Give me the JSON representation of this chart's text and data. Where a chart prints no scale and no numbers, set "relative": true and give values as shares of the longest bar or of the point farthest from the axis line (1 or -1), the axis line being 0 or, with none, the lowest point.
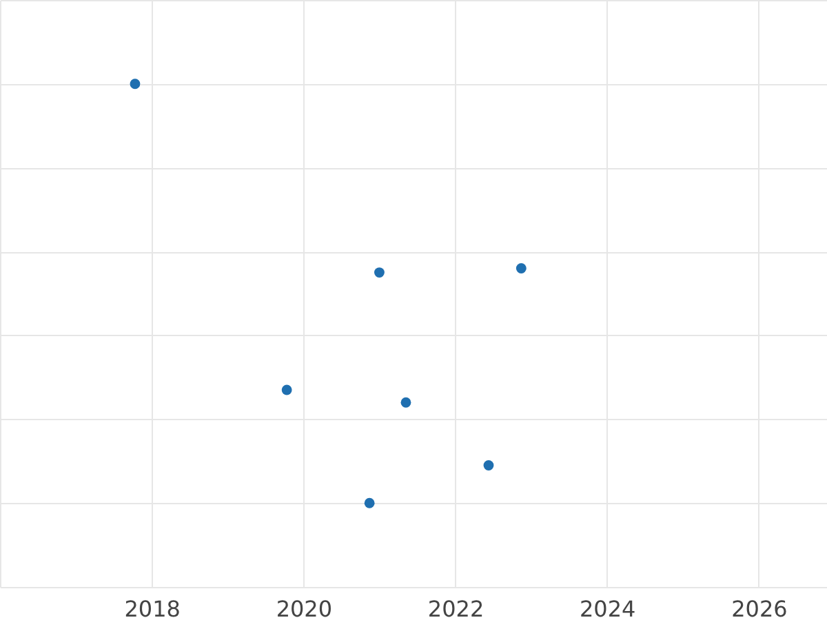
{
  "chart_data": {
    "type": "scatter",
    "relative": true,
    "grid": true,
    "marker": "circle",
    "x": [
      2017.78,
      2021.0,
      2022.87,
      2019.78,
      2021.35,
      2022.44,
      2020.87
    ],
    "series": [
      {
        "color": "#1f6fb0",
        "values": [
          1.0,
          0.55,
          0.56,
          0.27,
          0.24,
          0.09,
          0.0
        ]
      }
    ],
    "xlim": [
      2016,
      2026.9
    ],
    "xticks": [
      {
        "value": 2016,
        "label": null
      },
      2018,
      2020,
      2022,
      2024,
      2026
    ]
  }
}
